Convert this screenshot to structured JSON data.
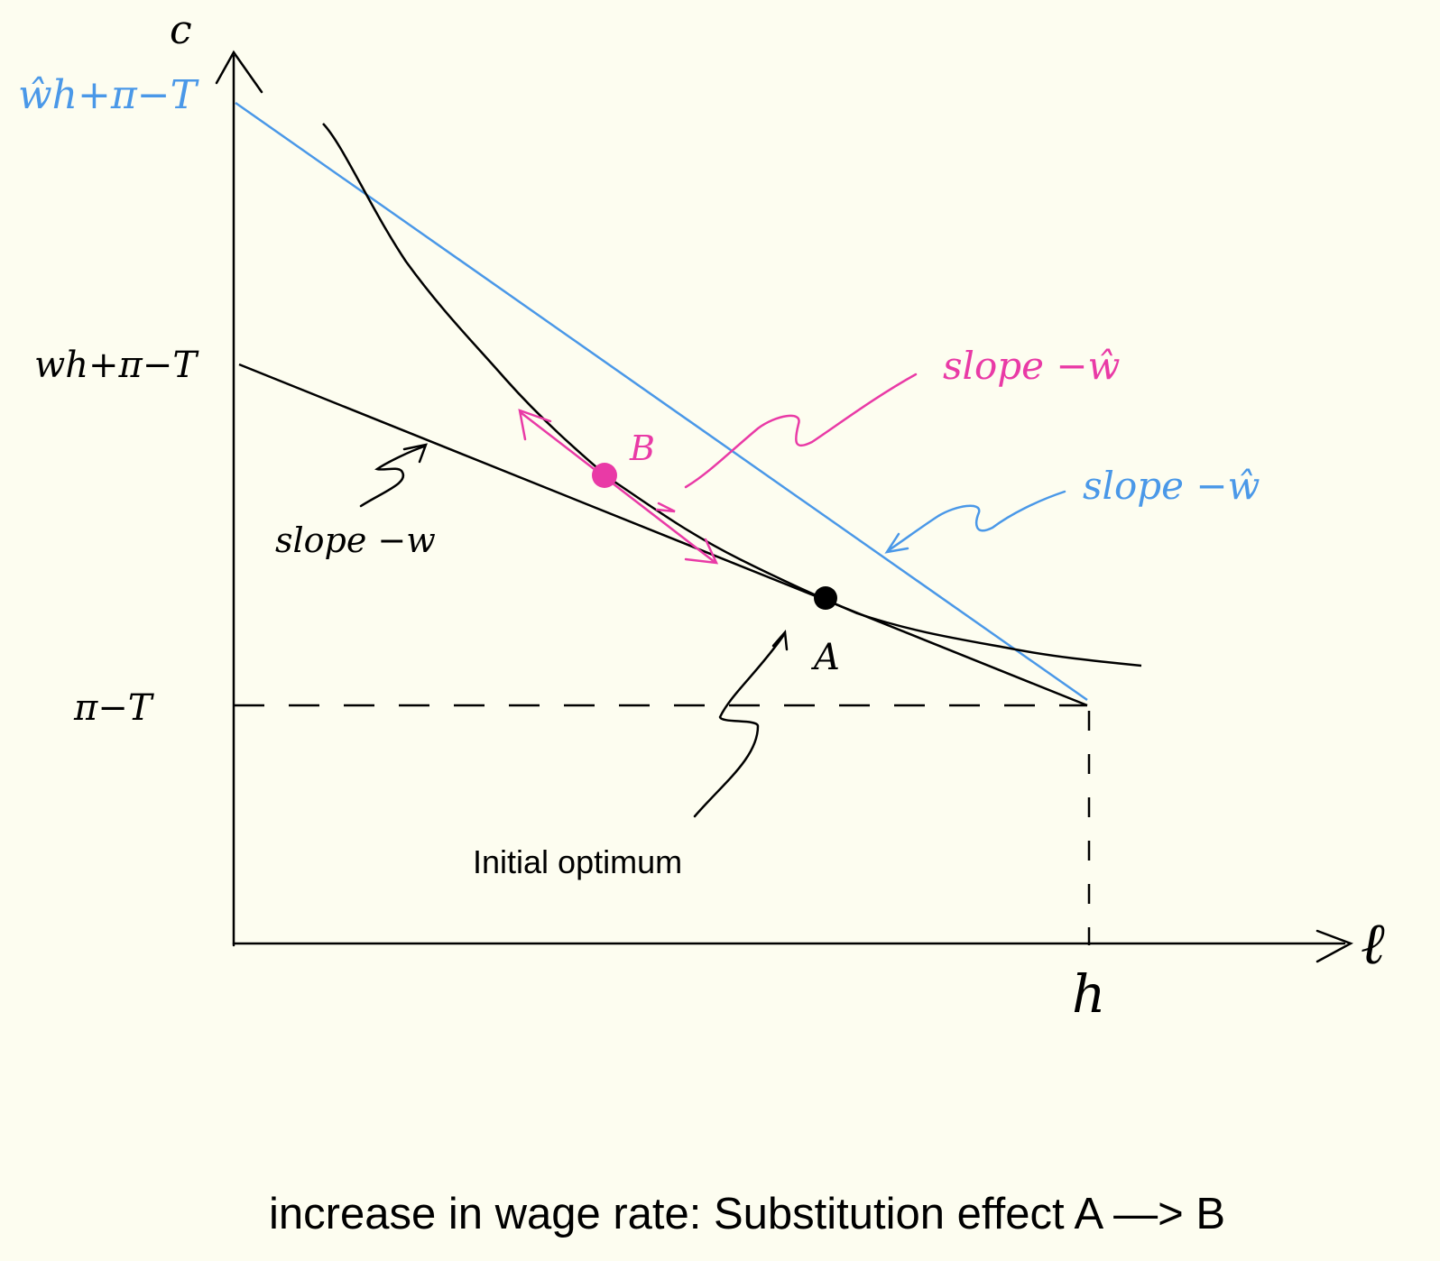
{
  "axes": {
    "y_label": "c",
    "x_label": "ℓ",
    "x_endpoint_label": "h"
  },
  "y_labels": {
    "new_intercept": "ŵh+π−T",
    "old_intercept": "wh+π−T",
    "nonlabor_income": "π−T"
  },
  "annotations": {
    "old_slope": "slope −w",
    "pink_slope": "slope −ŵ",
    "blue_slope": "slope −ŵ",
    "point_a": "A",
    "point_b": "B",
    "initial_optimum": "Initial optimum"
  },
  "caption": "increase in wage rate: Substitution effect A —> B",
  "colors": {
    "background": "#fdfdf0",
    "ink": "#000000",
    "blue": "#4a98e8",
    "pink": "#e93aa6"
  }
}
